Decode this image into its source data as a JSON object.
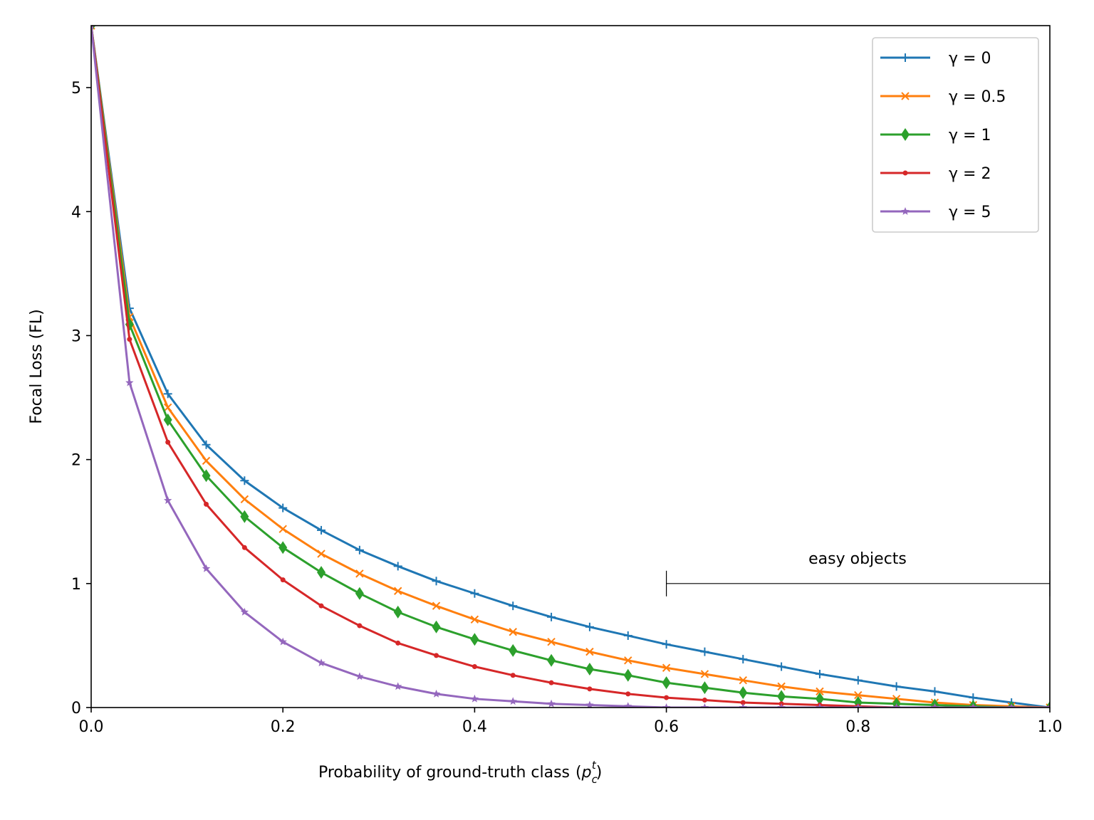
{
  "chart_data": {
    "type": "line",
    "title": "",
    "xlabel": "Probability of ground-truth class",
    "xlabel_math": "(p_c^t)",
    "ylabel": "Focal Loss (FL)",
    "xlim": [
      0.0,
      1.0
    ],
    "ylim": [
      0,
      5.5
    ],
    "xticks": [
      "0.0",
      "0.2",
      "0.4",
      "0.6",
      "0.8",
      "1.0"
    ],
    "yticks": [
      "0",
      "1",
      "2",
      "3",
      "4",
      "5"
    ],
    "legend_position": "top-right",
    "grid": false,
    "x": [
      0.0,
      0.04,
      0.08,
      0.12,
      0.16,
      0.2,
      0.24,
      0.28,
      0.32,
      0.36,
      0.4,
      0.44,
      0.48,
      0.52,
      0.56,
      0.6,
      0.64,
      0.68,
      0.72,
      0.76,
      0.8,
      0.84,
      0.88,
      0.92,
      0.96,
      1.0
    ],
    "series": [
      {
        "name": "γ = 0",
        "gamma": 0,
        "color": "#1f77b4",
        "marker": "plus",
        "values": [
          5.5,
          3.22,
          2.53,
          2.12,
          1.83,
          1.61,
          1.43,
          1.27,
          1.14,
          1.02,
          0.92,
          0.82,
          0.73,
          0.65,
          0.58,
          0.51,
          0.45,
          0.39,
          0.33,
          0.27,
          0.22,
          0.17,
          0.13,
          0.08,
          0.04,
          0.0
        ]
      },
      {
        "name": "γ = 0.5",
        "gamma": 0.5,
        "color": "#ff7f0e",
        "marker": "x",
        "values": [
          5.5,
          3.15,
          2.42,
          1.99,
          1.68,
          1.44,
          1.24,
          1.08,
          0.94,
          0.82,
          0.71,
          0.61,
          0.53,
          0.45,
          0.38,
          0.32,
          0.27,
          0.22,
          0.17,
          0.13,
          0.1,
          0.07,
          0.04,
          0.02,
          0.01,
          0.0
        ]
      },
      {
        "name": "γ = 1",
        "gamma": 1,
        "color": "#2ca02c",
        "marker": "diamond",
        "values": [
          5.5,
          3.09,
          2.32,
          1.87,
          1.54,
          1.29,
          1.09,
          0.92,
          0.77,
          0.65,
          0.55,
          0.46,
          0.38,
          0.31,
          0.26,
          0.2,
          0.16,
          0.12,
          0.09,
          0.07,
          0.04,
          0.03,
          0.02,
          0.01,
          0.0,
          0.0
        ]
      },
      {
        "name": "γ = 2",
        "gamma": 2,
        "color": "#d62728",
        "marker": "dot",
        "values": [
          5.5,
          2.97,
          2.14,
          1.64,
          1.29,
          1.03,
          0.82,
          0.66,
          0.52,
          0.42,
          0.33,
          0.26,
          0.2,
          0.15,
          0.11,
          0.08,
          0.06,
          0.04,
          0.03,
          0.02,
          0.01,
          0.0,
          0.0,
          0.0,
          0.0,
          0.0
        ]
      },
      {
        "name": "γ = 5",
        "gamma": 5,
        "color": "#9467bd",
        "marker": "star",
        "values": [
          5.5,
          2.62,
          1.67,
          1.12,
          0.77,
          0.53,
          0.36,
          0.25,
          0.17,
          0.11,
          0.07,
          0.05,
          0.03,
          0.02,
          0.01,
          0.0,
          0.0,
          0.0,
          0.0,
          0.0,
          0.0,
          0.0,
          0.0,
          0.0,
          0.0,
          0.0
        ]
      }
    ],
    "annotation": {
      "text": "easy objects",
      "x_start": 0.6,
      "x_end": 1.0,
      "y": 1
    }
  }
}
